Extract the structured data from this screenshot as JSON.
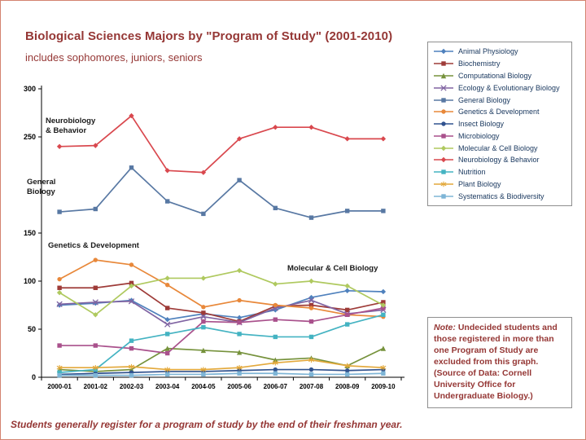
{
  "slide": {
    "title": "Biological Sciences Majors by \"Program of Study\" (2001-2010)",
    "subtitle": "includes sophomores, juniors, seniors",
    "footer": "Students generally register for a program of study by the end of their freshman year.",
    "note": {
      "label": "Note:",
      "text": "Undecided students and those registered in more than one Program of Study are excluded from this graph. (Source of Data: Cornell University Office for Undergraduate Biology.)"
    }
  },
  "chart_data": {
    "type": "line",
    "title": "Biological Sciences Majors by \"Program of Study\" (2001-2010)",
    "xlabel": "",
    "ylabel": "",
    "ylim": [
      0,
      300
    ],
    "y_ticks": [
      0,
      50,
      100,
      150,
      250,
      300
    ],
    "grid": false,
    "legend_position": "right",
    "categories": [
      "2000-01",
      "2001-02",
      "2002-03",
      "2003-04",
      "2004-05",
      "2005-06",
      "2006-07",
      "2007-08",
      "2008-09",
      "2009-10"
    ],
    "series": [
      {
        "name": "Animal Physiology",
        "color": "#4f81bd",
        "marker": "diamond",
        "values": [
          75,
          77,
          80,
          60,
          66,
          62,
          70,
          83,
          90,
          89
        ]
      },
      {
        "name": "Biochemistry",
        "color": "#9e3b38",
        "marker": "square",
        "values": [
          93,
          93,
          98,
          72,
          67,
          58,
          74,
          75,
          70,
          78
        ]
      },
      {
        "name": "Computational Biology",
        "color": "#76923c",
        "marker": "triangle",
        "values": [
          8,
          6,
          8,
          30,
          28,
          26,
          18,
          20,
          12,
          30
        ]
      },
      {
        "name": "Ecology & Evolutionary Biology",
        "color": "#8064a2",
        "marker": "x",
        "values": [
          76,
          78,
          79,
          55,
          63,
          57,
          72,
          80,
          66,
          70
        ]
      },
      {
        "name": "General Biology",
        "color": "#5878a3",
        "marker": "square",
        "values": [
          172,
          175,
          218,
          183,
          170,
          205,
          176,
          166,
          173,
          173
        ]
      },
      {
        "name": "Genetics & Development",
        "color": "#e8883a",
        "marker": "circle",
        "values": [
          102,
          122,
          117,
          96,
          73,
          80,
          75,
          72,
          65,
          63
        ]
      },
      {
        "name": "Insect Biology",
        "color": "#31538f",
        "marker": "circle",
        "values": [
          3,
          4,
          5,
          6,
          6,
          7,
          8,
          8,
          7,
          8
        ]
      },
      {
        "name": "Microbiology",
        "color": "#a9518c",
        "marker": "square",
        "values": [
          33,
          33,
          30,
          25,
          58,
          57,
          60,
          58,
          65,
          72
        ]
      },
      {
        "name": "Molecular & Cell Biology",
        "color": "#afc95f",
        "marker": "diamond",
        "values": [
          88,
          65,
          95,
          103,
          103,
          111,
          97,
          100,
          95,
          75
        ]
      },
      {
        "name": "Neurobiology & Behavior",
        "color": "#d9484e",
        "marker": "diamond",
        "values": [
          240,
          241,
          272,
          215,
          213,
          248,
          260,
          260,
          248,
          248
        ]
      },
      {
        "name": "Nutrition",
        "color": "#44b3c2",
        "marker": "square",
        "values": [
          5,
          8,
          38,
          45,
          52,
          45,
          42,
          42,
          55,
          65
        ]
      },
      {
        "name": "Plant Biology",
        "color": "#e3a93c",
        "marker": "star",
        "values": [
          10,
          10,
          11,
          8,
          8,
          10,
          15,
          18,
          12,
          10
        ]
      },
      {
        "name": "Systematics & Biodiversity",
        "color": "#7eb5d6",
        "marker": "square",
        "values": [
          2,
          2,
          2,
          3,
          3,
          4,
          4,
          3,
          3,
          4
        ]
      }
    ],
    "annotations": [
      {
        "lines": [
          "Neurobiology",
          "& Behavior"
        ],
        "x": 49,
        "y": 62
      },
      {
        "lines": [
          "General",
          "Biology"
        ],
        "x": 26,
        "y": 137
      },
      {
        "lines": [
          "Genetics & Development"
        ],
        "x": 52,
        "y": 215
      },
      {
        "lines": [
          "Molecular & Cell Biology"
        ],
        "x": 346,
        "y": 243
      }
    ]
  }
}
